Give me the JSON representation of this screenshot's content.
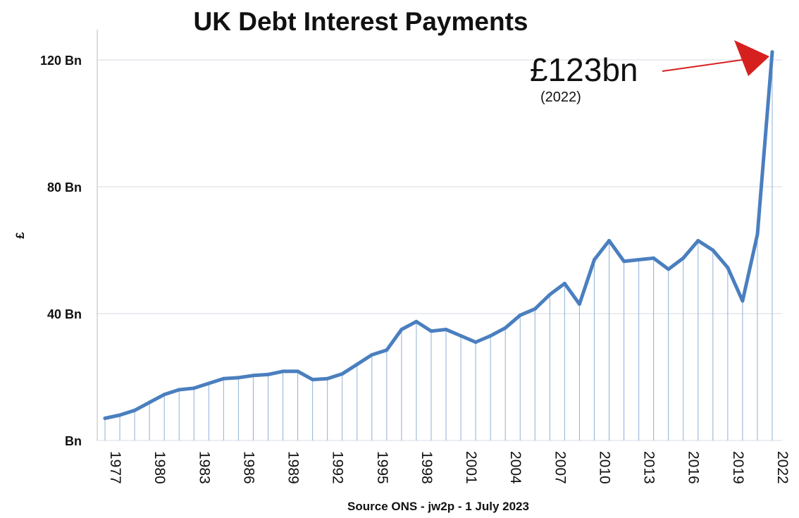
{
  "chart_data": {
    "type": "line",
    "title": "UK Debt Interest Payments",
    "xlabel": "Source ONS - jw2p - 1 July 2023",
    "ylabel": "£",
    "ylim": [
      0,
      130
    ],
    "yticks": [
      {
        "value": 0,
        "label": "Bn"
      },
      {
        "value": 40,
        "label": "40 Bn"
      },
      {
        "value": 80,
        "label": "80 Bn"
      },
      {
        "value": 120,
        "label": "120 Bn"
      }
    ],
    "xticks": [
      "1977",
      "1980",
      "1983",
      "1986",
      "1989",
      "1992",
      "1995",
      "1998",
      "2001",
      "2004",
      "2007",
      "2010",
      "2013",
      "2016",
      "2019",
      "2022"
    ],
    "grid": "horizontal lines at y ticks; vertical drop lines at each data point",
    "line_color": "#4a7fbf",
    "annotation_color": "#d62020",
    "x": [
      1977,
      1978,
      1979,
      1980,
      1981,
      1982,
      1983,
      1984,
      1985,
      1986,
      1987,
      1988,
      1989,
      1990,
      1991,
      1992,
      1993,
      1994,
      1995,
      1996,
      1997,
      1998,
      1999,
      2000,
      2001,
      2002,
      2003,
      2004,
      2005,
      2006,
      2007,
      2008,
      2009,
      2010,
      2011,
      2012,
      2013,
      2014,
      2015,
      2016,
      2017,
      2018,
      2019,
      2020,
      2021,
      2022
    ],
    "series": [
      {
        "values": [
          7,
          8,
          9.5,
          12,
          14.5,
          16,
          16.5,
          18,
          19.5,
          19.8,
          20.5,
          20.8,
          21.8,
          21.8,
          19.2,
          19.5,
          21,
          24,
          27,
          28.5,
          35,
          37.5,
          34.5,
          35,
          33,
          31,
          33,
          35.5,
          39.5,
          41.5,
          46,
          49.5,
          43,
          57,
          63,
          56.5,
          57,
          57.5,
          54,
          57.5,
          63,
          60,
          54.5,
          44,
          65,
          122.5
        ]
      }
    ],
    "annotation": {
      "value_text": "£123bn",
      "year_text": "(2022)"
    }
  }
}
